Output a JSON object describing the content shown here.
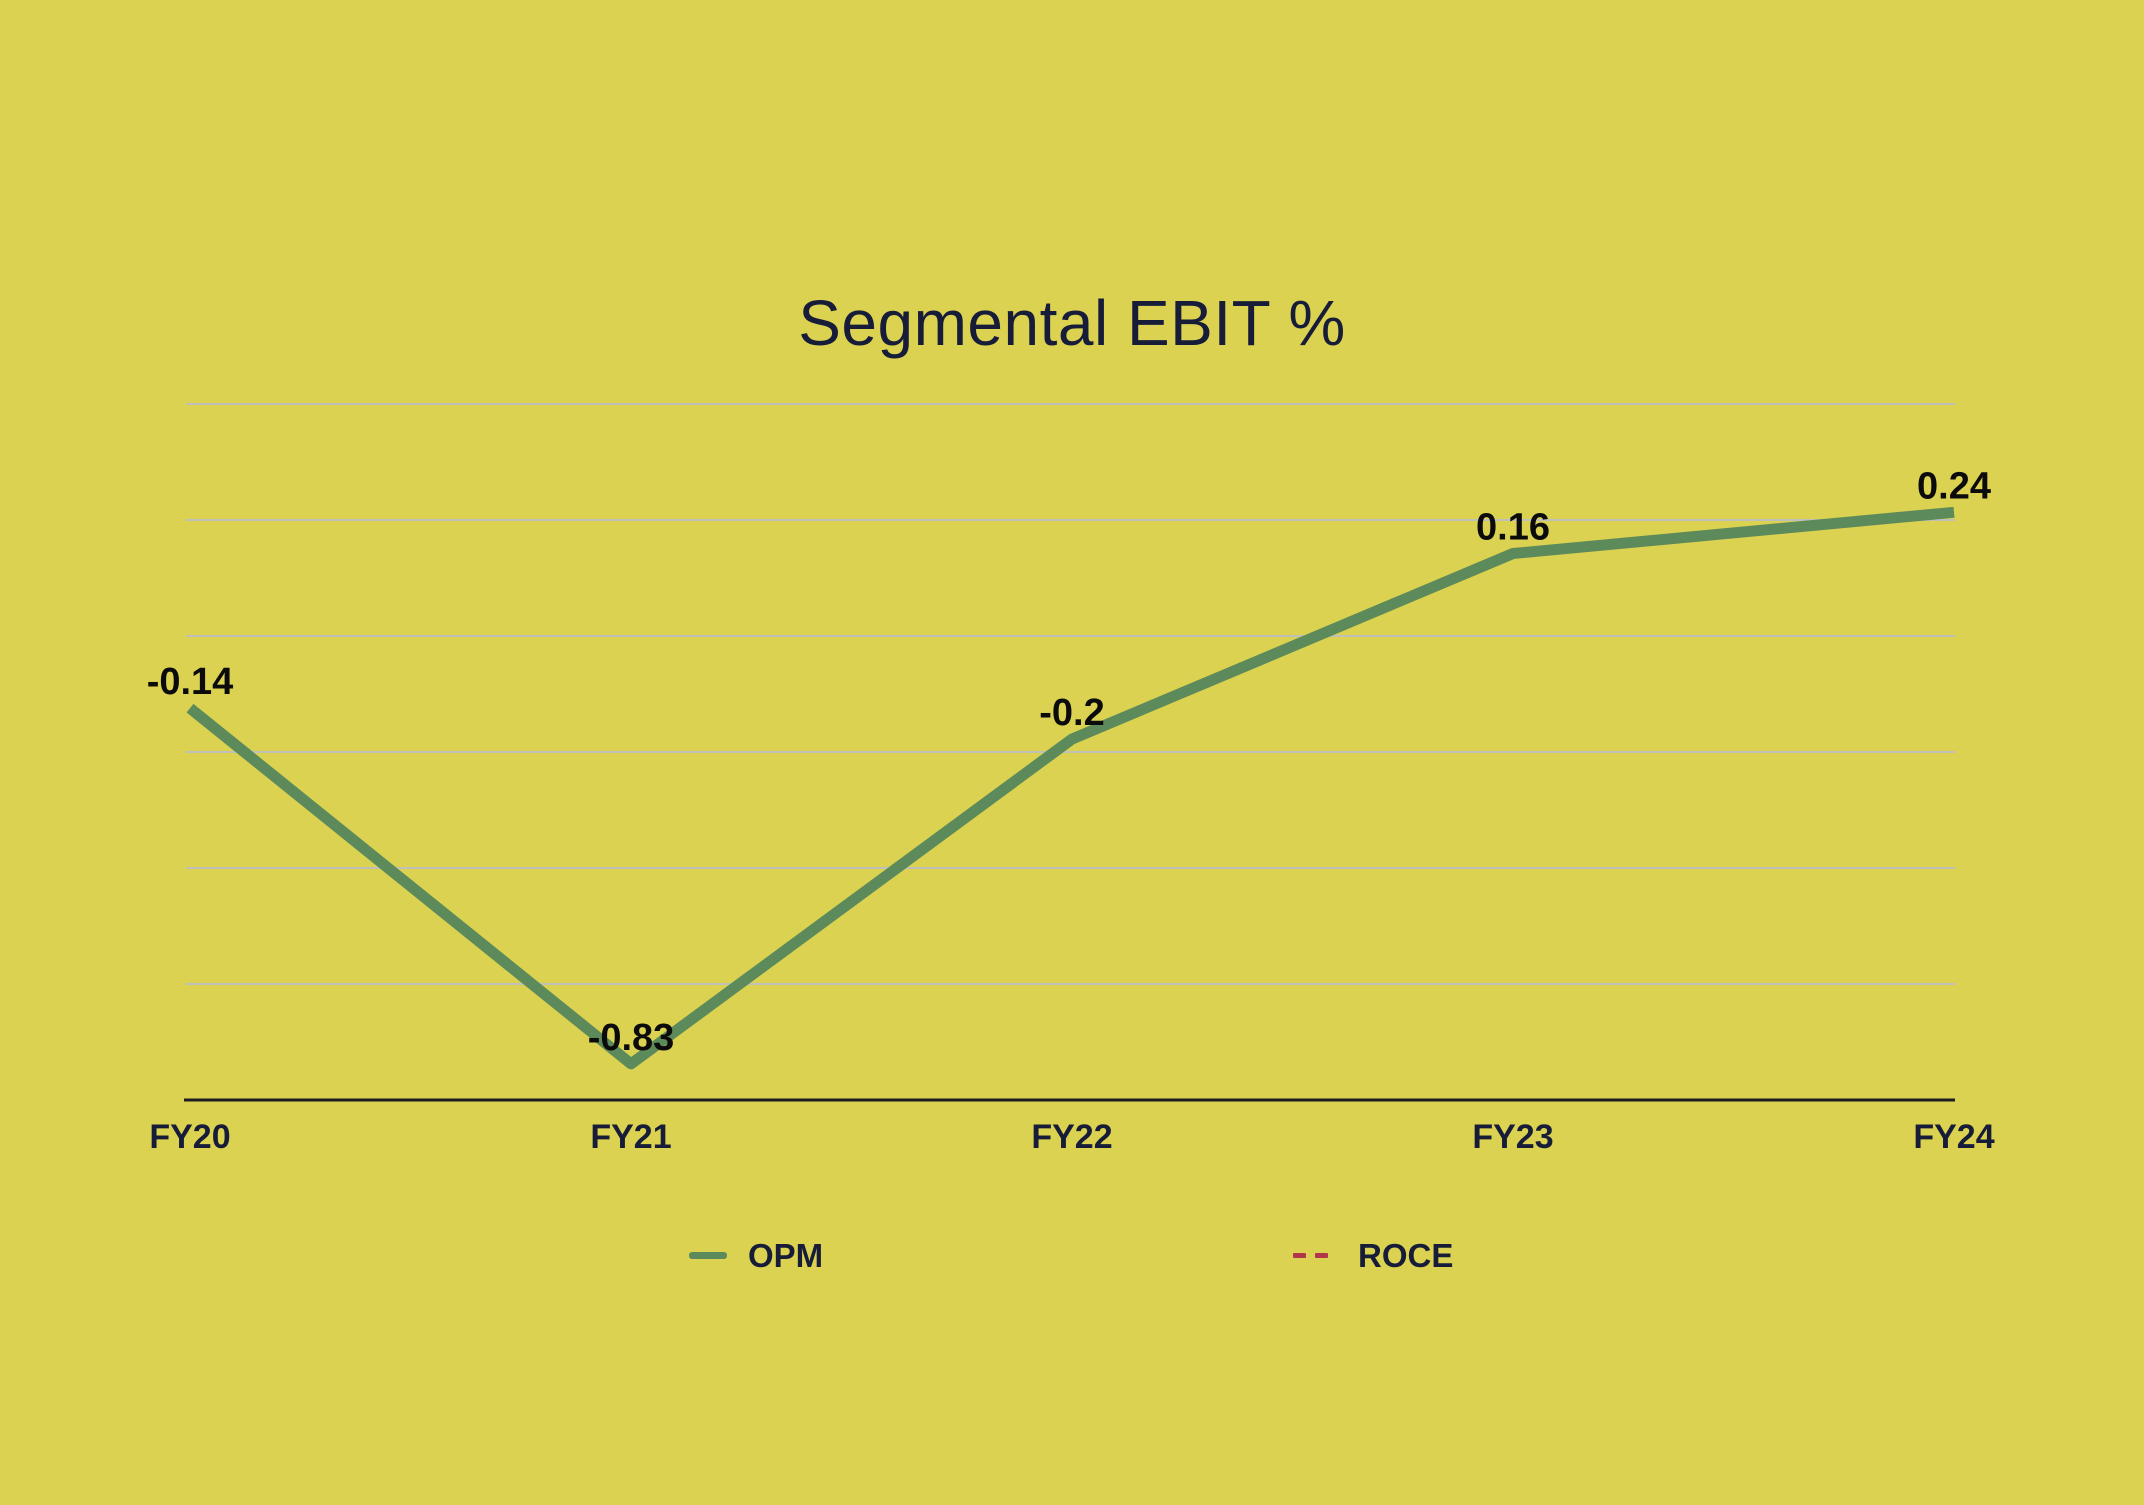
{
  "colors": {
    "background": "#dbd251",
    "opm_green": "#5c8a5b",
    "roce_red": "#b23649",
    "navy_text": "#171c38",
    "label_black": "#0b0b0b",
    "gridline_gray": "#bfc0ba",
    "axis_black": "#1c1c22"
  },
  "chart_data": {
    "type": "line",
    "title": "Segmental EBIT %",
    "categories": [
      "FY20",
      "FY21",
      "FY22",
      "FY23",
      "FY24"
    ],
    "series": [
      {
        "name": "OPM",
        "values": [
          -0.14,
          -0.83,
          -0.2,
          0.16,
          0.24
        ],
        "data_labels": [
          "-0.14",
          "-0.83",
          "-0.2",
          "0.16",
          "0.24"
        ],
        "color_key": "opm_green",
        "line_style": "solid",
        "visible": true
      },
      {
        "name": "ROCE",
        "values": [],
        "data_labels": [],
        "color_key": "roce_red",
        "line_style": "dashed",
        "visible": false
      }
    ],
    "ylim": [
      -0.9,
      0.45
    ],
    "grid_values": [
      0.45,
      0.225,
      0,
      -0.225,
      -0.45,
      -0.675
    ],
    "grid": true,
    "legend_position": "bottom",
    "xlabel": "",
    "ylabel": ""
  }
}
